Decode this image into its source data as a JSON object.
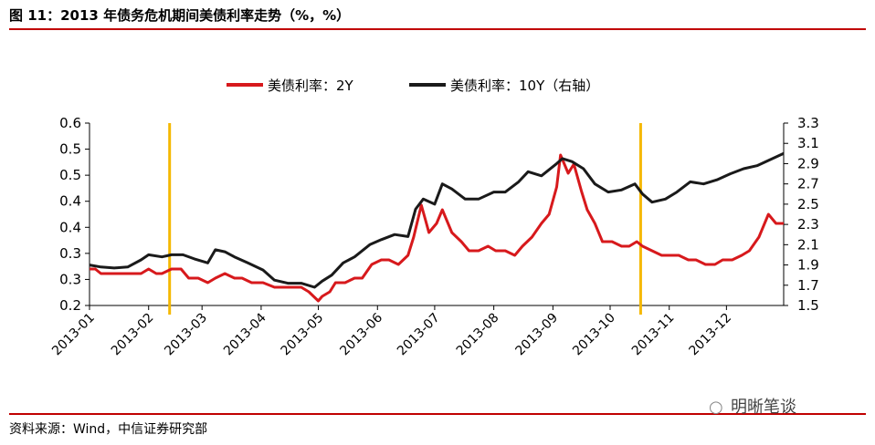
{
  "figure_title": "图 11：2013 年债务危机期间美债利率走势（%，%）",
  "source": "资料来源：Wind，中信证券研究部",
  "watermark": "明晰笔谈",
  "colors": {
    "series_2y": "#d7191c",
    "series_10y": "#1a1a1a",
    "marker": "#f5b800",
    "rule": "#c00000"
  },
  "chart_data": {
    "type": "line",
    "title": "图 11：2013 年债务危机期间美债利率走势（%，%）",
    "x_tick_labels": [
      "2013-01",
      "2013-02",
      "2013-03",
      "2013-04",
      "2013-05",
      "2013-06",
      "2013-07",
      "2013-08",
      "2013-09",
      "2013-10",
      "2013-11",
      "2013-12"
    ],
    "y_left_tick_labels": [
      "0.2",
      "0.3",
      "0.3",
      "0.4",
      "0.4",
      "0.5",
      "0.5",
      "0.6"
    ],
    "y_left_range": [
      0.2,
      0.6
    ],
    "y_right_tick_labels": [
      "1.5",
      "1.7",
      "1.9",
      "2.1",
      "2.3",
      "2.5",
      "2.7",
      "2.9",
      "3.1",
      "3.3"
    ],
    "y_right_range": [
      1.5,
      3.3
    ],
    "legend_position": "top",
    "vertical_markers": [
      "2013-02-12",
      "2013-10-17"
    ],
    "series": [
      {
        "name": "美债利率：2Y",
        "axis": "left",
        "color": "#d7191c",
        "points": [
          [
            "2013-01-01",
            0.28
          ],
          [
            "2013-01-04",
            0.28
          ],
          [
            "2013-01-07",
            0.27
          ],
          [
            "2013-01-10",
            0.27
          ],
          [
            "2013-01-14",
            0.27
          ],
          [
            "2013-01-18",
            0.27
          ],
          [
            "2013-01-23",
            0.27
          ],
          [
            "2013-01-28",
            0.27
          ],
          [
            "2013-02-01",
            0.28
          ],
          [
            "2013-02-05",
            0.27
          ],
          [
            "2013-02-08",
            0.27
          ],
          [
            "2013-02-13",
            0.28
          ],
          [
            "2013-02-18",
            0.28
          ],
          [
            "2013-02-22",
            0.26
          ],
          [
            "2013-02-27",
            0.26
          ],
          [
            "2013-03-04",
            0.25
          ],
          [
            "2013-03-08",
            0.26
          ],
          [
            "2013-03-13",
            0.27
          ],
          [
            "2013-03-18",
            0.26
          ],
          [
            "2013-03-22",
            0.26
          ],
          [
            "2013-03-27",
            0.25
          ],
          [
            "2013-04-02",
            0.25
          ],
          [
            "2013-04-08",
            0.24
          ],
          [
            "2013-04-12",
            0.24
          ],
          [
            "2013-04-17",
            0.24
          ],
          [
            "2013-04-22",
            0.24
          ],
          [
            "2013-04-26",
            0.23
          ],
          [
            "2013-05-01",
            0.21
          ],
          [
            "2013-05-03",
            0.22
          ],
          [
            "2013-05-07",
            0.23
          ],
          [
            "2013-05-10",
            0.25
          ],
          [
            "2013-05-15",
            0.25
          ],
          [
            "2013-05-20",
            0.26
          ],
          [
            "2013-05-24",
            0.26
          ],
          [
            "2013-05-29",
            0.29
          ],
          [
            "2013-06-03",
            0.3
          ],
          [
            "2013-06-07",
            0.3
          ],
          [
            "2013-06-12",
            0.29
          ],
          [
            "2013-06-17",
            0.31
          ],
          [
            "2013-06-20",
            0.35
          ],
          [
            "2013-06-24",
            0.42
          ],
          [
            "2013-06-26",
            0.39
          ],
          [
            "2013-06-28",
            0.36
          ],
          [
            "2013-07-02",
            0.38
          ],
          [
            "2013-07-05",
            0.41
          ],
          [
            "2013-07-10",
            0.36
          ],
          [
            "2013-07-15",
            0.34
          ],
          [
            "2013-07-19",
            0.32
          ],
          [
            "2013-07-24",
            0.32
          ],
          [
            "2013-07-29",
            0.33
          ],
          [
            "2013-08-02",
            0.32
          ],
          [
            "2013-08-07",
            0.32
          ],
          [
            "2013-08-12",
            0.31
          ],
          [
            "2013-08-16",
            0.33
          ],
          [
            "2013-08-21",
            0.35
          ],
          [
            "2013-08-26",
            0.38
          ],
          [
            "2013-08-30",
            0.4
          ],
          [
            "2013-09-03",
            0.46
          ],
          [
            "2013-09-05",
            0.53
          ],
          [
            "2013-09-09",
            0.49
          ],
          [
            "2013-09-12",
            0.51
          ],
          [
            "2013-09-16",
            0.45
          ],
          [
            "2013-09-19",
            0.41
          ],
          [
            "2013-09-23",
            0.38
          ],
          [
            "2013-09-27",
            0.34
          ],
          [
            "2013-10-02",
            0.34
          ],
          [
            "2013-10-07",
            0.33
          ],
          [
            "2013-10-11",
            0.33
          ],
          [
            "2013-10-15",
            0.34
          ],
          [
            "2013-10-18",
            0.33
          ],
          [
            "2013-10-23",
            0.32
          ],
          [
            "2013-10-28",
            0.31
          ],
          [
            "2013-11-01",
            0.31
          ],
          [
            "2013-11-06",
            0.31
          ],
          [
            "2013-11-11",
            0.3
          ],
          [
            "2013-11-15",
            0.3
          ],
          [
            "2013-11-20",
            0.29
          ],
          [
            "2013-11-25",
            0.29
          ],
          [
            "2013-11-29",
            0.3
          ],
          [
            "2013-12-04",
            0.3
          ],
          [
            "2013-12-09",
            0.31
          ],
          [
            "2013-12-13",
            0.32
          ],
          [
            "2013-12-18",
            0.35
          ],
          [
            "2013-12-23",
            0.4
          ],
          [
            "2013-12-27",
            0.38
          ],
          [
            "2013-12-31",
            0.38
          ]
        ]
      },
      {
        "name": "美债利率：10Y（右轴）",
        "axis": "right",
        "color": "#1a1a1a",
        "points": [
          [
            "2013-01-01",
            1.9
          ],
          [
            "2013-01-07",
            1.88
          ],
          [
            "2013-01-14",
            1.87
          ],
          [
            "2013-01-21",
            1.88
          ],
          [
            "2013-01-28",
            1.95
          ],
          [
            "2013-02-01",
            2.0
          ],
          [
            "2013-02-08",
            1.98
          ],
          [
            "2013-02-13",
            2.0
          ],
          [
            "2013-02-19",
            2.0
          ],
          [
            "2013-02-25",
            1.96
          ],
          [
            "2013-03-04",
            1.92
          ],
          [
            "2013-03-08",
            2.05
          ],
          [
            "2013-03-13",
            2.03
          ],
          [
            "2013-03-18",
            1.98
          ],
          [
            "2013-03-25",
            1.92
          ],
          [
            "2013-04-02",
            1.85
          ],
          [
            "2013-04-08",
            1.75
          ],
          [
            "2013-04-15",
            1.72
          ],
          [
            "2013-04-22",
            1.72
          ],
          [
            "2013-04-29",
            1.68
          ],
          [
            "2013-05-03",
            1.74
          ],
          [
            "2013-05-08",
            1.8
          ],
          [
            "2013-05-14",
            1.92
          ],
          [
            "2013-05-20",
            1.98
          ],
          [
            "2013-05-28",
            2.1
          ],
          [
            "2013-06-03",
            2.15
          ],
          [
            "2013-06-10",
            2.2
          ],
          [
            "2013-06-17",
            2.18
          ],
          [
            "2013-06-21",
            2.45
          ],
          [
            "2013-06-25",
            2.55
          ],
          [
            "2013-07-01",
            2.5
          ],
          [
            "2013-07-05",
            2.7
          ],
          [
            "2013-07-10",
            2.65
          ],
          [
            "2013-07-17",
            2.55
          ],
          [
            "2013-07-24",
            2.55
          ],
          [
            "2013-08-01",
            2.62
          ],
          [
            "2013-08-07",
            2.62
          ],
          [
            "2013-08-14",
            2.72
          ],
          [
            "2013-08-19",
            2.82
          ],
          [
            "2013-08-26",
            2.78
          ],
          [
            "2013-09-03",
            2.9
          ],
          [
            "2013-09-06",
            2.95
          ],
          [
            "2013-09-11",
            2.92
          ],
          [
            "2013-09-17",
            2.85
          ],
          [
            "2013-09-23",
            2.7
          ],
          [
            "2013-09-30",
            2.62
          ],
          [
            "2013-10-07",
            2.64
          ],
          [
            "2013-10-14",
            2.7
          ],
          [
            "2013-10-18",
            2.6
          ],
          [
            "2013-10-23",
            2.52
          ],
          [
            "2013-10-30",
            2.55
          ],
          [
            "2013-11-05",
            2.62
          ],
          [
            "2013-11-12",
            2.72
          ],
          [
            "2013-11-19",
            2.7
          ],
          [
            "2013-11-26",
            2.74
          ],
          [
            "2013-12-03",
            2.8
          ],
          [
            "2013-12-10",
            2.85
          ],
          [
            "2013-12-17",
            2.88
          ],
          [
            "2013-12-24",
            2.94
          ],
          [
            "2013-12-31",
            3.0
          ]
        ]
      }
    ]
  }
}
